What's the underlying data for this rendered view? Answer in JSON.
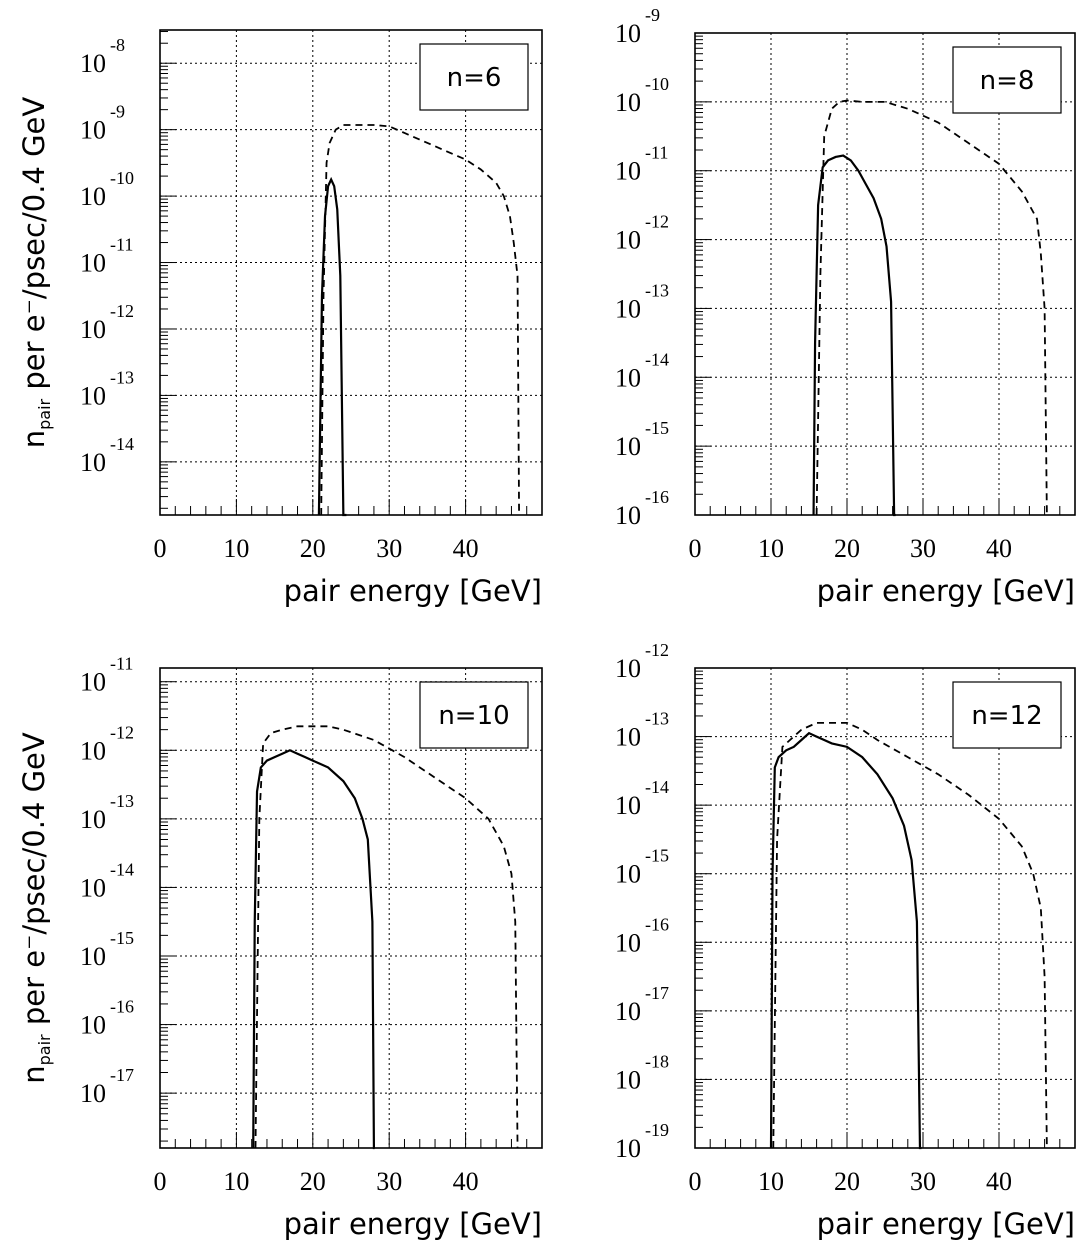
{
  "chart_data": [
    {
      "type": "line",
      "label": "n=6",
      "xlabel": "pair energy [GeV]",
      "ylabel": "n_pair per e⁻/psec/0.4 GeV",
      "xlim": [
        0,
        50
      ],
      "xticks": [
        0,
        10,
        20,
        30,
        40
      ],
      "ylim_log10": [
        -14.8,
        -7.5
      ],
      "ytick_exponents": [
        -8,
        -9,
        -10,
        -11,
        -12,
        -13,
        -14
      ],
      "log_scale_y": true,
      "grid": true,
      "series": [
        {
          "style": "solid",
          "x": [
            20.8,
            21.2,
            21.6,
            22.0,
            22.4,
            22.8,
            23.2,
            23.6,
            24.0,
            24.2,
            24.4
          ],
          "log10_y": [
            -14.8,
            -11.5,
            -10.3,
            -9.85,
            -9.75,
            -9.85,
            -10.2,
            -11.2,
            -14.8,
            -14.8,
            -14.8
          ]
        },
        {
          "style": "dashed",
          "x": [
            21.1,
            21.4,
            21.8,
            22.2,
            23.0,
            24.0,
            26.0,
            28.0,
            30.0,
            32.0,
            34.0,
            36.0,
            38.0,
            40.0,
            42.0,
            44.0,
            45.0,
            45.8,
            46.3,
            46.8,
            47.0
          ],
          "log10_y": [
            -14.8,
            -11.5,
            -9.5,
            -9.2,
            -9.0,
            -8.93,
            -8.93,
            -8.93,
            -8.95,
            -9.05,
            -9.15,
            -9.25,
            -9.35,
            -9.45,
            -9.6,
            -9.8,
            -10.0,
            -10.3,
            -10.7,
            -11.2,
            -14.8
          ]
        }
      ]
    },
    {
      "type": "line",
      "label": "n=8",
      "xlabel": "pair energy [GeV]",
      "ylabel": "",
      "xlim": [
        0,
        50
      ],
      "xticks": [
        0,
        10,
        20,
        30,
        40
      ],
      "ylim_log10": [
        -16,
        -9
      ],
      "ytick_exponents": [
        -9,
        -10,
        -11,
        -12,
        -13,
        -14,
        -15,
        -16
      ],
      "log_scale_y": true,
      "grid": true,
      "series": [
        {
          "style": "solid",
          "x": [
            15.6,
            15.8,
            16.2,
            16.8,
            17.5,
            18.5,
            19.5,
            20.5,
            21.5,
            22.5,
            23.5,
            24.5,
            25.2,
            25.8,
            26.2,
            26.4
          ],
          "log10_y": [
            -16,
            -13.5,
            -11.5,
            -10.95,
            -10.85,
            -10.8,
            -10.78,
            -10.85,
            -11.0,
            -11.2,
            -11.4,
            -11.7,
            -12.1,
            -12.9,
            -16,
            -16
          ]
        },
        {
          "style": "dashed",
          "x": [
            16.0,
            16.5,
            17.0,
            18.0,
            19.0,
            20.0,
            22.0,
            25.0,
            28.0,
            32.0,
            36.0,
            40.0,
            43.0,
            45.0,
            45.5,
            46.0,
            46.3
          ],
          "log10_y": [
            -16,
            -12.5,
            -10.5,
            -10.1,
            -10.0,
            -9.98,
            -10.0,
            -10.0,
            -10.1,
            -10.3,
            -10.6,
            -10.9,
            -11.3,
            -11.7,
            -12.2,
            -13.0,
            -16
          ]
        }
      ]
    },
    {
      "type": "line",
      "label": "n=10",
      "xlabel": "pair energy [GeV]",
      "ylabel": "n_pair per e⁻/psec/0.4 GeV",
      "xlim": [
        0,
        50
      ],
      "xticks": [
        0,
        10,
        20,
        30,
        40
      ],
      "ylim_log10": [
        -17.8,
        -10.8
      ],
      "ytick_exponents": [
        -11,
        -12,
        -13,
        -14,
        -15,
        -16,
        -17
      ],
      "log_scale_y": true,
      "grid": true,
      "series": [
        {
          "style": "solid",
          "x": [
            12.2,
            12.4,
            12.7,
            13.2,
            14.0,
            15.0,
            16.0,
            17.0,
            18.0,
            19.0,
            20.0,
            22.0,
            24.0,
            25.5,
            26.5,
            27.2,
            27.8,
            28.0,
            28.1
          ],
          "log10_y": [
            -17.8,
            -14.5,
            -12.6,
            -12.25,
            -12.15,
            -12.1,
            -12.05,
            -12.0,
            -12.05,
            -12.1,
            -12.15,
            -12.25,
            -12.45,
            -12.7,
            -13.0,
            -13.3,
            -14.5,
            -17.8,
            -17.8
          ]
        },
        {
          "style": "dashed",
          "x": [
            12.5,
            13.0,
            13.5,
            14.5,
            16.0,
            18.0,
            20.0,
            22.0,
            24.0,
            28.0,
            32.0,
            36.0,
            40.0,
            43.0,
            45.0,
            46.0,
            46.5,
            46.8
          ],
          "log10_y": [
            -17.8,
            -13.0,
            -11.9,
            -11.75,
            -11.7,
            -11.65,
            -11.65,
            -11.65,
            -11.7,
            -11.85,
            -12.1,
            -12.4,
            -12.7,
            -13.0,
            -13.4,
            -13.8,
            -14.5,
            -17.8
          ]
        }
      ]
    },
    {
      "type": "line",
      "label": "n=12",
      "xlabel": "pair energy [GeV]",
      "ylabel": "",
      "xlim": [
        0,
        50
      ],
      "xticks": [
        0,
        10,
        20,
        30,
        40
      ],
      "ylim_log10": [
        -19,
        -12
      ],
      "ytick_exponents": [
        -12,
        -13,
        -14,
        -15,
        -16,
        -17,
        -18,
        -19
      ],
      "log_scale_y": true,
      "grid": true,
      "series": [
        {
          "style": "solid",
          "x": [
            10.0,
            10.2,
            10.5,
            11.0,
            12.0,
            13.0,
            14.0,
            15.0,
            16.0,
            17.0,
            18.0,
            20.0,
            22.0,
            24.0,
            26.0,
            27.5,
            28.5,
            29.2,
            29.6,
            29.8
          ],
          "log10_y": [
            -19,
            -15.0,
            -13.45,
            -13.3,
            -13.2,
            -13.15,
            -13.05,
            -12.95,
            -13.0,
            -13.05,
            -13.1,
            -13.15,
            -13.3,
            -13.55,
            -13.9,
            -14.3,
            -14.8,
            -15.7,
            -19,
            -19
          ]
        },
        {
          "style": "dashed",
          "x": [
            10.3,
            10.8,
            11.5,
            12.5,
            14.0,
            16.0,
            18.0,
            20.0,
            22.0,
            24.0,
            28.0,
            32.0,
            36.0,
            40.0,
            43.0,
            44.5,
            45.5,
            46.0,
            46.3
          ],
          "log10_y": [
            -19,
            -14.5,
            -13.15,
            -13.05,
            -12.9,
            -12.8,
            -12.8,
            -12.8,
            -12.9,
            -13.05,
            -13.3,
            -13.55,
            -13.85,
            -14.2,
            -14.6,
            -15.0,
            -15.5,
            -16.5,
            -19
          ]
        }
      ]
    }
  ]
}
